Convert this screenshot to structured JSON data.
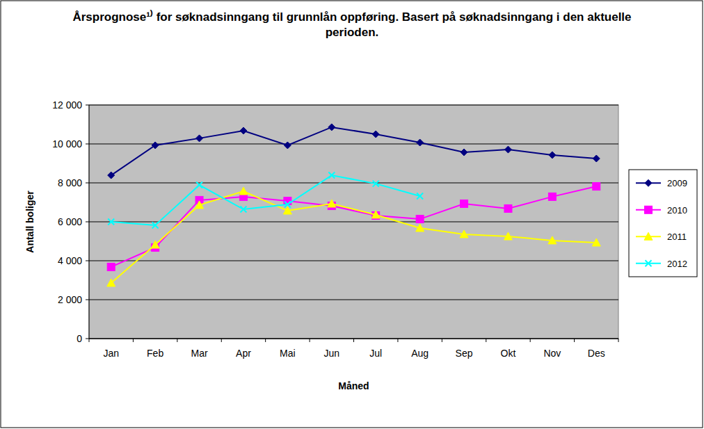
{
  "chart_data": {
    "type": "line",
    "title": "Årsprognose¹⁾ for søknadsinngang til grunnlån oppføring. Basert på søknadsinngang i den aktuelle perioden.",
    "x_label": "Måned",
    "y_label": "Antall boliger",
    "categories": [
      "Jan",
      "Feb",
      "Mar",
      "Apr",
      "Mai",
      "Jun",
      "Jul",
      "Aug",
      "Sep",
      "Okt",
      "Nov",
      "Des"
    ],
    "series": [
      {
        "name": "2009",
        "color": "#000080",
        "marker": "diamond",
        "values": [
          8390,
          9930,
          10290,
          10680,
          9930,
          10860,
          10500,
          10070,
          9570,
          9710,
          9430,
          9250
        ]
      },
      {
        "name": "2010",
        "color": "#ff00ff",
        "marker": "square",
        "values": [
          3680,
          4680,
          7110,
          7290,
          7070,
          6820,
          6320,
          6140,
          6930,
          6680,
          7290,
          7820
        ]
      },
      {
        "name": "2011",
        "color": "#ffff00",
        "marker": "triangle",
        "values": [
          2860,
          4820,
          6860,
          7570,
          6570,
          6930,
          6360,
          5680,
          5360,
          5250,
          5040,
          4930
        ]
      },
      {
        "name": "2012",
        "color": "#00ffff",
        "marker": "x",
        "values": [
          6000,
          5820,
          7890,
          6640,
          6890,
          8390,
          7960,
          7320,
          null,
          null,
          null,
          null
        ]
      }
    ],
    "ylim": [
      0,
      12000
    ],
    "yticks": [
      0,
      {
        "value": 2000,
        "label": "2 000"
      },
      {
        "value": 4000,
        "label": "4 000"
      },
      {
        "value": 6000,
        "label": "6 000"
      },
      {
        "value": 8000,
        "label": "8 000"
      },
      {
        "value": 10000,
        "label": "10 000"
      },
      {
        "value": 12000,
        "label": "12 000"
      }
    ],
    "grid": true,
    "legend": "right"
  }
}
